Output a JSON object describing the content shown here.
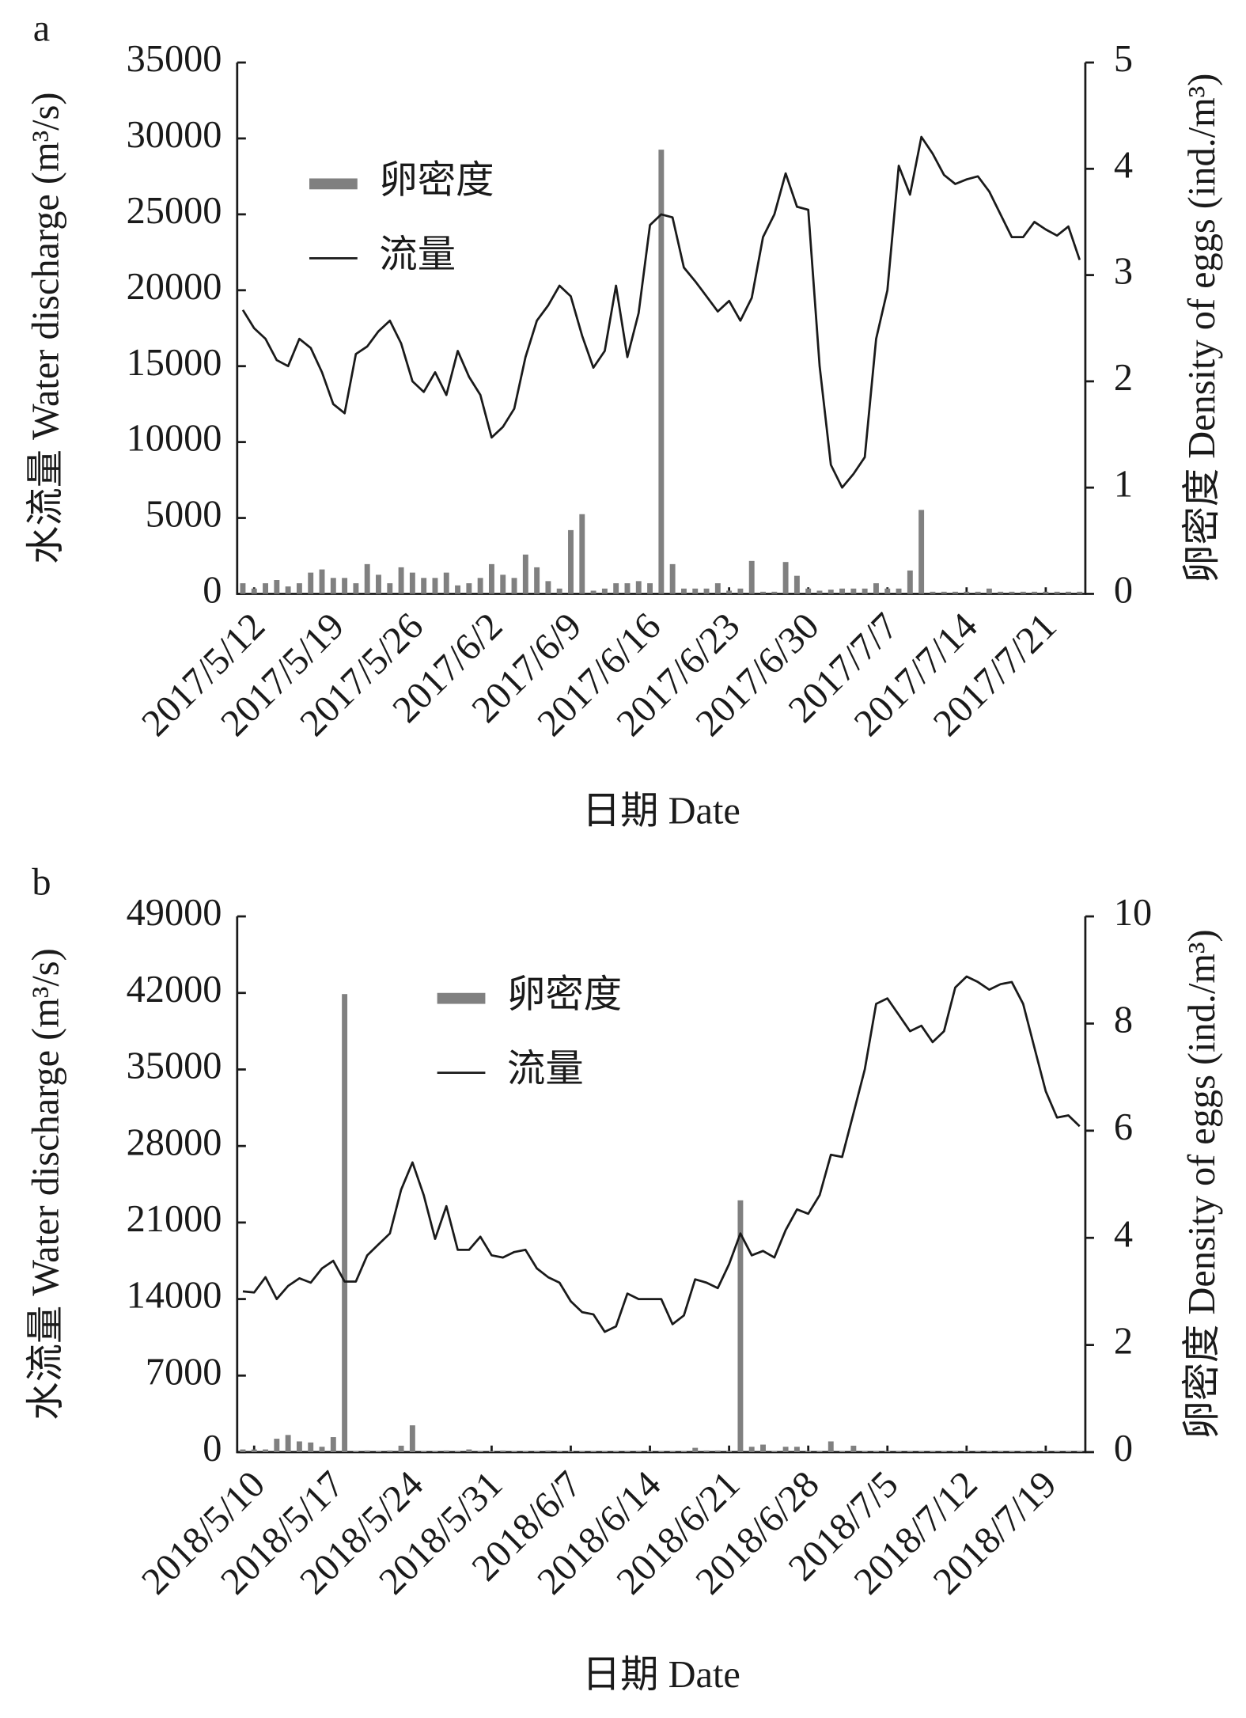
{
  "chart_data": [
    {
      "type": "combo",
      "panel": "a",
      "xlabel": "日期 Date",
      "ylabel": "水流量 Water discharge (m³/s)",
      "y2label": "卵密度 Density of eggs (ind./m³)",
      "categories": [
        null,
        "2017/5/12",
        null,
        null,
        null,
        null,
        null,
        null,
        "2017/5/19",
        null,
        null,
        null,
        null,
        null,
        null,
        "2017/5/26",
        null,
        null,
        null,
        null,
        null,
        null,
        "2017/6/2",
        null,
        null,
        null,
        null,
        null,
        null,
        "2017/6/9",
        null,
        null,
        null,
        null,
        null,
        null,
        "2017/6/16",
        null,
        null,
        null,
        null,
        null,
        null,
        "2017/6/23",
        null,
        null,
        null,
        null,
        null,
        null,
        "2017/6/30",
        null,
        null,
        null,
        null,
        null,
        null,
        "2017/7/7",
        null,
        null,
        null,
        null,
        null,
        null,
        "2017/7/14",
        null,
        null,
        null,
        null,
        null,
        null,
        "2017/7/21",
        null,
        null,
        null
      ],
      "ylim": [
        0,
        35000
      ],
      "yticks": [
        0,
        5000,
        10000,
        15000,
        20000,
        25000,
        30000,
        35000
      ],
      "y2lim": [
        0,
        5
      ],
      "y2ticks": [
        0,
        1,
        2,
        3,
        4,
        5
      ],
      "legend": "upper left",
      "series": [
        {
          "name": "卵密度",
          "type": "bar",
          "axis": "y2",
          "color": "#808080",
          "values": [
            0.1,
            0.05,
            0.1,
            0.13,
            0.07,
            0.1,
            0.2,
            0.23,
            0.15,
            0.15,
            0.1,
            0.28,
            0.18,
            0.1,
            0.25,
            0.2,
            0.15,
            0.15,
            0.2,
            0.08,
            0.1,
            0.15,
            0.28,
            0.18,
            0.15,
            0.37,
            0.25,
            0.12,
            0.05,
            0.6,
            0.75,
            0.03,
            0.05,
            0.1,
            0.1,
            0.12,
            0.1,
            4.18,
            0.28,
            0.05,
            0.05,
            0.05,
            0.1,
            0.03,
            0.05,
            0.31,
            0.02,
            0.02,
            0.3,
            0.17,
            0.05,
            0.03,
            0.04,
            0.05,
            0.05,
            0.05,
            0.1,
            0.05,
            0.05,
            0.22,
            0.79,
            0.02,
            0.02,
            0.02,
            0.02,
            0.02,
            0.05,
            0.02,
            0.02,
            0.02,
            0.02,
            0.02,
            0.02,
            0.02,
            0.02
          ]
        },
        {
          "name": "流量",
          "type": "line",
          "color": "#1a1a1a",
          "values": [
            18700,
            17500,
            16800,
            15400,
            15000,
            16800,
            16200,
            14600,
            12500,
            11900,
            15800,
            16300,
            17300,
            18000,
            16500,
            14000,
            13300,
            14600,
            13100,
            16000,
            14300,
            13100,
            10300,
            11000,
            12200,
            15600,
            18000,
            19000,
            20300,
            19600,
            17000,
            14900,
            16000,
            20300,
            15600,
            18500,
            24300,
            25000,
            24800,
            21500,
            20600,
            19600,
            18600,
            19300,
            18000,
            19500,
            23500,
            25000,
            27700,
            25500,
            25300,
            15000,
            8500,
            7000,
            7900,
            9000,
            16800,
            20000,
            28200,
            26300,
            30100,
            29000,
            27600,
            27000,
            27300,
            27500,
            26500,
            25000,
            23500,
            23500,
            24500,
            24000,
            23600,
            24200,
            22000
          ]
        }
      ]
    },
    {
      "type": "combo",
      "panel": "b",
      "xlabel": "日期 Date",
      "ylabel": "水流量 Water discharge (m³/s)",
      "y2label": "卵密度 Density of eggs (ind./m³)",
      "categories": [
        null,
        "2018/5/10",
        null,
        null,
        null,
        null,
        null,
        null,
        "2018/5/17",
        null,
        null,
        null,
        null,
        null,
        null,
        "2018/5/24",
        null,
        null,
        null,
        null,
        null,
        null,
        "2018/5/31",
        null,
        null,
        null,
        null,
        null,
        null,
        "2018/6/7",
        null,
        null,
        null,
        null,
        null,
        null,
        "2018/6/14",
        null,
        null,
        null,
        null,
        null,
        null,
        "2018/6/21",
        null,
        null,
        null,
        null,
        null,
        null,
        "2018/6/28",
        null,
        null,
        null,
        null,
        null,
        null,
        "2018/7/5",
        null,
        null,
        null,
        null,
        null,
        null,
        "2018/7/12",
        null,
        null,
        null,
        null,
        null,
        null,
        "2018/7/19",
        null,
        null,
        null
      ],
      "ylim": [
        0,
        49000
      ],
      "yticks": [
        0,
        7000,
        14000,
        21000,
        28000,
        35000,
        42000,
        49000
      ],
      "y2lim": [
        0,
        10
      ],
      "y2ticks": [
        0,
        2,
        4,
        6,
        8,
        10
      ],
      "legend": "upper left",
      "series": [
        {
          "name": "卵密度",
          "type": "bar",
          "axis": "y2",
          "color": "#808080",
          "values": [
            0.05,
            0.05,
            0.05,
            0.25,
            0.32,
            0.2,
            0.18,
            0.1,
            0.28,
            8.55,
            0.02,
            0.03,
            0.02,
            0.03,
            0.12,
            0.5,
            0.02,
            0.02,
            0.03,
            0.02,
            0.05,
            0.02,
            0.02,
            0.03,
            0.02,
            0.02,
            0.02,
            0.03,
            0.02,
            0.02,
            0.02,
            0.02,
            0.02,
            0.02,
            0.02,
            0.02,
            0.02,
            0.02,
            0.02,
            0.02,
            0.08,
            0.03,
            0.03,
            0.02,
            4.7,
            0.1,
            0.14,
            0.02,
            0.1,
            0.1,
            0.02,
            0.02,
            0.2,
            0.02,
            0.12,
            0.02,
            0.02,
            0.02,
            0.02,
            0.02,
            0.02,
            0.02,
            0.02,
            0.02,
            0.02,
            0.02,
            0.02,
            0.02,
            0.02,
            0.02,
            0.02,
            0.02,
            0.02,
            0.02,
            0.02
          ]
        },
        {
          "name": "流量",
          "type": "line",
          "color": "#1a1a1a",
          "values": [
            14700,
            14600,
            16000,
            14000,
            15200,
            15900,
            15500,
            16800,
            17500,
            15600,
            15600,
            18000,
            19000,
            20000,
            24000,
            26500,
            23500,
            19500,
            22500,
            18500,
            18500,
            19700,
            18000,
            17800,
            18300,
            18500,
            16800,
            16000,
            15500,
            13800,
            12800,
            12600,
            11000,
            11500,
            14500,
            14000,
            14000,
            14000,
            11700,
            12500,
            15800,
            15500,
            15000,
            17200,
            20000,
            18000,
            18400,
            17800,
            20300,
            22200,
            21800,
            23500,
            27200,
            27000,
            31000,
            35000,
            41000,
            41500,
            40000,
            38500,
            39000,
            37500,
            38500,
            42500,
            43500,
            43000,
            42300,
            42800,
            43000,
            41000,
            37000,
            33000,
            30600,
            30800,
            29800
          ]
        }
      ]
    }
  ]
}
